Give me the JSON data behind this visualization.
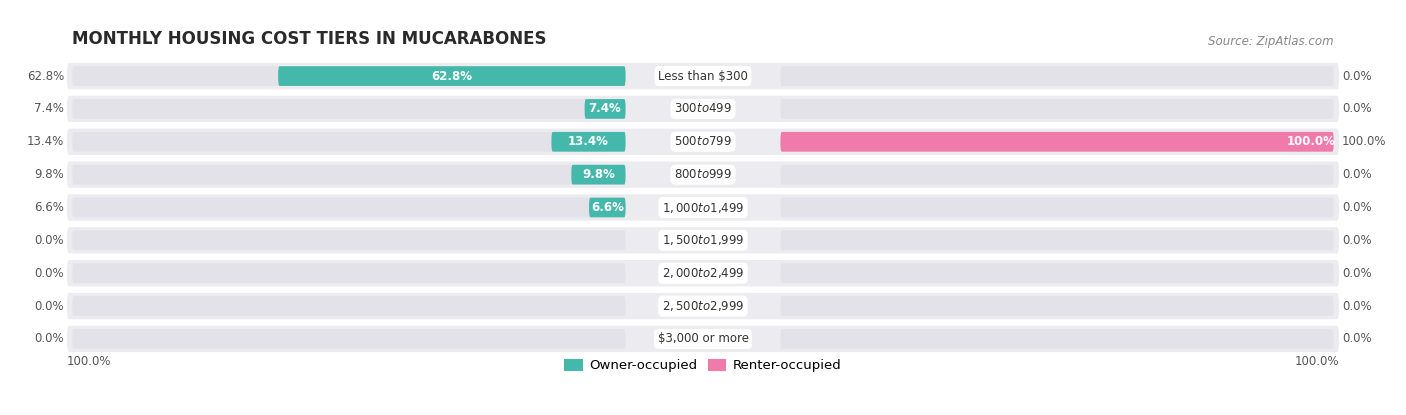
{
  "title": "MONTHLY HOUSING COST TIERS IN MUCARABONES",
  "source": "Source: ZipAtlas.com",
  "categories": [
    "Less than $300",
    "$300 to $499",
    "$500 to $799",
    "$800 to $999",
    "$1,000 to $1,499",
    "$1,500 to $1,999",
    "$2,000 to $2,499",
    "$2,500 to $2,999",
    "$3,000 or more"
  ],
  "owner_values": [
    62.8,
    7.4,
    13.4,
    9.8,
    6.6,
    0.0,
    0.0,
    0.0,
    0.0
  ],
  "renter_values": [
    0.0,
    0.0,
    100.0,
    0.0,
    0.0,
    0.0,
    0.0,
    0.0,
    0.0
  ],
  "owner_color": "#45B8AC",
  "renter_color": "#F07BAA",
  "bar_bg_color": "#E2E2E8",
  "row_bg_color": "#EBEBF0",
  "max_value": 100.0,
  "axis_label_left": "100.0%",
  "axis_label_right": "100.0%",
  "title_fontsize": 12,
  "source_fontsize": 8.5,
  "value_fontsize": 8.5,
  "category_fontsize": 8.5,
  "legend_fontsize": 9.5
}
